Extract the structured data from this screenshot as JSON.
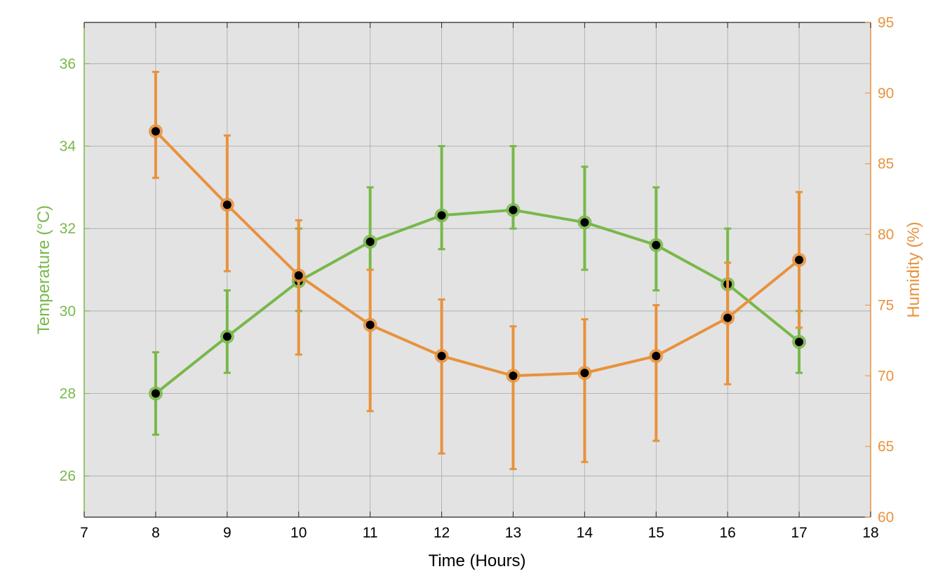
{
  "chart_data": {
    "type": "line",
    "title": "",
    "xlabel": "Time (Hours)",
    "ylabel_left": "Temperature (°C)",
    "ylabel_right": "Humidity (%)",
    "xlim": [
      7,
      18
    ],
    "ylim_left": [
      25,
      37
    ],
    "ylim_right": [
      60,
      95
    ],
    "x_ticks": [
      7,
      8,
      9,
      10,
      11,
      12,
      13,
      14,
      15,
      16,
      17,
      18
    ],
    "y_left_ticks": [
      26,
      28,
      30,
      32,
      34,
      36
    ],
    "y_right_ticks": [
      60,
      65,
      70,
      75,
      80,
      85,
      90,
      95
    ],
    "grid": true,
    "background": "#e3e3e3",
    "x": [
      8,
      9,
      10,
      11,
      12,
      13,
      14,
      15,
      16,
      17
    ],
    "series": [
      {
        "axis": "left",
        "color": "#78b84a",
        "values": [
          28.0,
          29.38,
          30.72,
          31.68,
          32.32,
          32.45,
          32.15,
          31.6,
          30.65,
          29.25
        ],
        "error_low": [
          27.0,
          28.5,
          30.0,
          31.0,
          31.5,
          32.0,
          31.0,
          30.5,
          29.8,
          28.5
        ],
        "error_high": [
          29.0,
          30.5,
          32.0,
          33.0,
          34.0,
          34.0,
          33.5,
          33.0,
          32.0,
          30.0
        ]
      },
      {
        "axis": "right",
        "color": "#e8923c",
        "values": [
          87.3,
          82.1,
          77.1,
          73.6,
          71.4,
          70.0,
          70.2,
          71.4,
          74.1,
          78.2
        ],
        "error_low": [
          84.0,
          77.4,
          71.5,
          67.5,
          64.5,
          63.4,
          63.9,
          65.4,
          69.4,
          73.4
        ],
        "error_high": [
          91.5,
          87.0,
          81.0,
          77.5,
          75.4,
          73.5,
          74.0,
          75.0,
          78.0,
          83.0
        ]
      }
    ],
    "marker_color": "#000000"
  }
}
